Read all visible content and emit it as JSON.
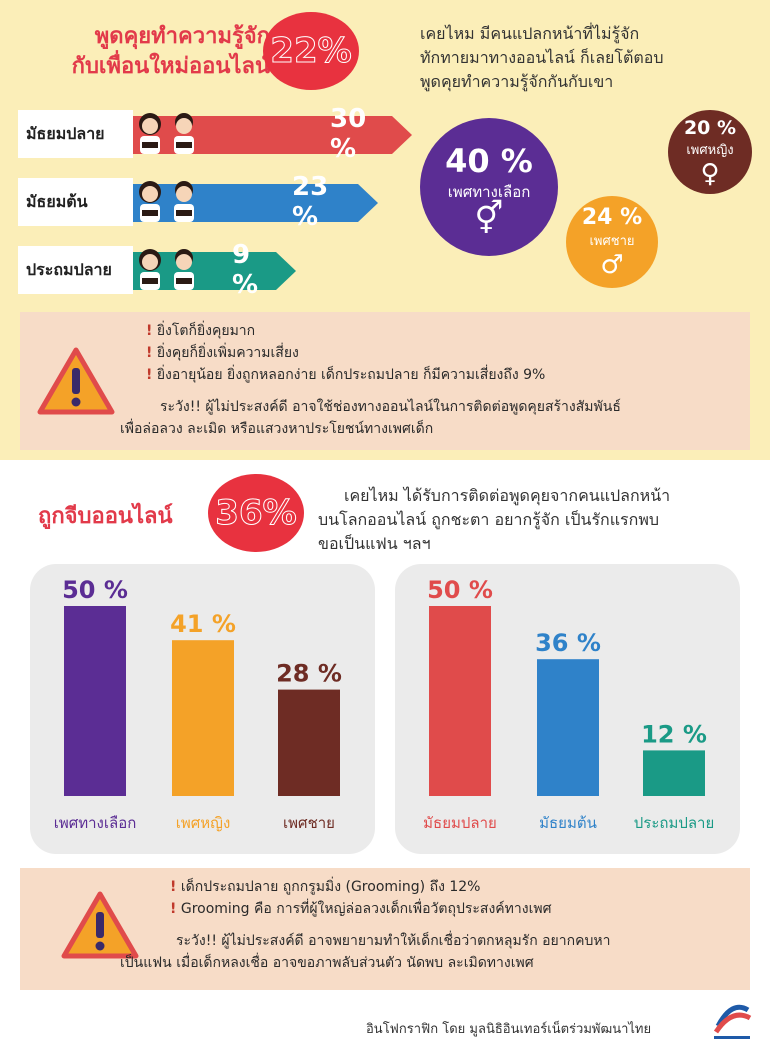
{
  "section1": {
    "title_line1": "พูดคุยทำความรู้จัก",
    "title_line2": "กับเพื่อนใหม่ออนไลน์",
    "percent": "22%",
    "intro_line1": "เคยไหม มีคนแปลกหน้าที่ไม่รู้จัก",
    "intro_line2": "ทักทายมาทางออนไลน์ ก็เลยโต้ตอบ",
    "intro_line3": "พูดคุยทำความรู้จักกันกับเขา",
    "age_groups": [
      {
        "label": "มัธยมปลาย",
        "value": "30 %",
        "number": 30,
        "color": "#e04b4b"
      },
      {
        "label": "มัธยมต้น",
        "value": "23 %",
        "number": 23,
        "color": "#2f82c9"
      },
      {
        "label": "ประถมปลาย",
        "value": "9 %",
        "number": 9,
        "color": "#1a9a86"
      }
    ],
    "genders": {
      "alt": {
        "value": "40 %",
        "label": "เพศทางเลือก",
        "symbol": "⚥",
        "color": "#5b2d94"
      },
      "male": {
        "value": "24 %",
        "label": "เพศชาย",
        "symbol": "♂",
        "color": "#f4a228"
      },
      "female": {
        "value": "20 %",
        "label": "เพศหญิง",
        "symbol": "♀",
        "color": "#6e2c24"
      }
    }
  },
  "warning1": {
    "bullet1": "ยิ่งโตก็ยิ่งคุยมาก",
    "bullet2": "ยิ่งคุยก็ยิ่งเพิ่มความเสี่ยง",
    "bullet3": "ยิ่งอายุน้อย ยิ่งถูกหลอกง่าย เด็กประถมปลาย ก็มีความเสี่ยงถึง 9%",
    "caution_line1": "ระวัง!! ผู้ไม่ประสงค์ดี อาจใช้ช่องทางออนไลน์ในการติดต่อพูดคุยสร้างสัมพันธ์",
    "caution_line2": "เพื่อล่อลวง ละเมิด หรือแสวงหาประโยชน์ทางเพศเด็ก"
  },
  "section2": {
    "title": "ถูกจีบออนไลน์",
    "percent": "36%",
    "intro_line1": "เคยไหม ได้รับการติดต่อพูดคุยจากคนแปลกหน้า",
    "intro_line2": "บนโลกออนไลน์ ถูกชะตา อยากรู้จัก เป็นรักแรกพบ",
    "intro_line3": "ขอเป็นแฟน ฯลฯ"
  },
  "chart_data": [
    {
      "type": "bar",
      "categories": [
        "เพศทางเลือก",
        "เพศหญิง",
        "เพศชาย"
      ],
      "values": [
        50,
        41,
        28
      ],
      "labels": [
        "50 %",
        "41 %",
        "28 %"
      ],
      "colors": [
        "#5b2d94",
        "#f4a228",
        "#6e2c24"
      ],
      "ylim": [
        0,
        50
      ]
    },
    {
      "type": "bar",
      "categories": [
        "มัธยมปลาย",
        "มัธยมต้น",
        "ประถมปลาย"
      ],
      "values": [
        50,
        36,
        12
      ],
      "labels": [
        "50 %",
        "36 %",
        "12 %"
      ],
      "colors": [
        "#e04b4b",
        "#2f82c9",
        "#1a9a86"
      ],
      "ylim": [
        0,
        50
      ]
    }
  ],
  "warning2": {
    "bullet1": "เด็กประถมปลาย ถูกกรูมมิ่ง (Grooming) ถึง 12%",
    "bullet2": "Grooming คือ การที่ผู้ใหญ่ล่อลวงเด็กเพื่อวัตถุประสงค์ทางเพศ",
    "caution_line1": "ระวัง!! ผู้ไม่ประสงค์ดี อาจพยายามทำให้เด็กเชื่อว่าตกหลุมรัก อยากคบหา",
    "caution_line2": "เป็นแฟน เมื่อเด็กหลงเชื่อ อาจขอภาพลับส่วนตัว นัดพบ ละเมิดทางเพศ"
  },
  "footer": {
    "credit": "อินโฟกราฟิก โดย มูลนิธิอินเทอร์เน็ตร่วมพัฒนาไทย"
  },
  "colors": {
    "background_top": "#fbeeb8",
    "accent_red": "#e23a4a",
    "warning_bg": "#f7dcc7"
  }
}
